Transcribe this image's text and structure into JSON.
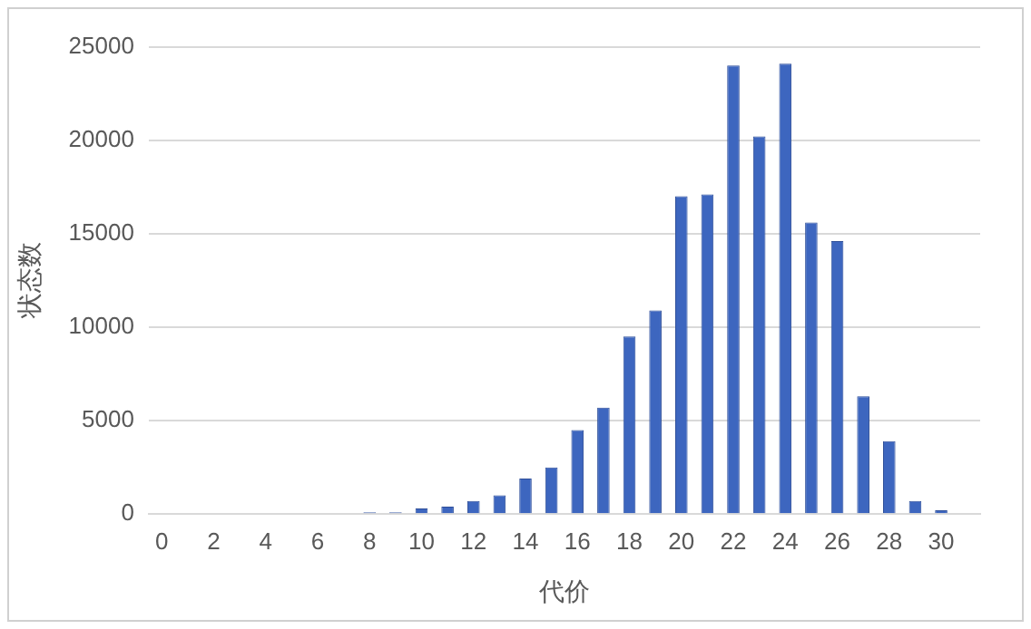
{
  "chart_data": {
    "type": "bar",
    "xlabel": "代价",
    "ylabel": "状态数",
    "x": [
      0,
      1,
      2,
      3,
      4,
      5,
      6,
      7,
      8,
      9,
      10,
      11,
      12,
      13,
      14,
      15,
      16,
      17,
      18,
      19,
      20,
      21,
      22,
      23,
      24,
      25,
      26,
      27,
      28,
      29,
      30,
      31
    ],
    "values": [
      0,
      0,
      0,
      0,
      0,
      0,
      0,
      0,
      100,
      100,
      300,
      400,
      700,
      1000,
      1900,
      2500,
      4500,
      5700,
      9500,
      10900,
      17000,
      17100,
      24000,
      20200,
      24100,
      15600,
      14600,
      6300,
      3900,
      700,
      200,
      0
    ],
    "color": "#3d66bf",
    "xlim": [
      -0.5,
      31.5
    ],
    "xticks": [
      0,
      2,
      4,
      6,
      8,
      10,
      12,
      14,
      16,
      18,
      20,
      22,
      24,
      26,
      28,
      30
    ],
    "ylim": [
      0,
      25000
    ],
    "yticks": [
      0,
      5000,
      10000,
      15000,
      20000,
      25000
    ],
    "grid": "y",
    "legend": false
  }
}
